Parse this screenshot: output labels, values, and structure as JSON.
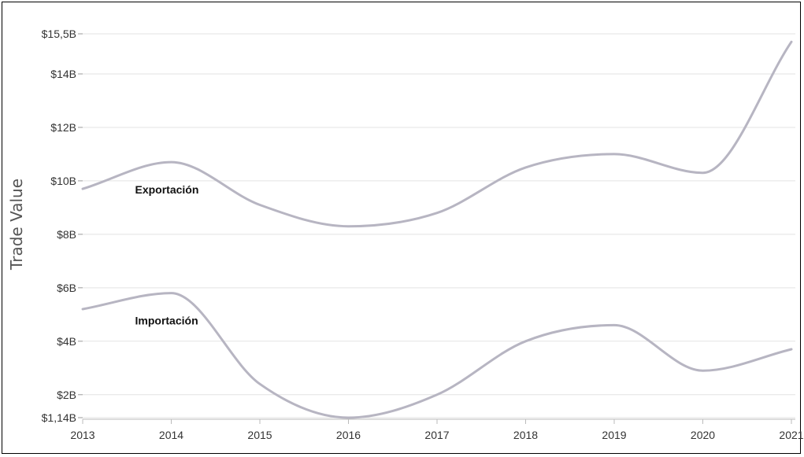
{
  "chart_data": {
    "type": "line",
    "title": "",
    "xlabel": "",
    "ylabel": "Trade Value",
    "x": [
      2013,
      2014,
      2015,
      2016,
      2017,
      2018,
      2019,
      2020,
      2021
    ],
    "x_tick_labels": [
      "2013",
      "2014",
      "2015",
      "2016",
      "2017",
      "2018",
      "2019",
      "2020",
      "2021"
    ],
    "y_ticks": [
      1.14,
      2,
      4,
      6,
      8,
      10,
      12,
      14,
      15.5
    ],
    "y_tick_labels": [
      "$1,14B",
      "$2B",
      "$4B",
      "$6B",
      "$8B",
      "$10B",
      "$12B",
      "$14B",
      "$15,5B"
    ],
    "ylim": [
      1.14,
      15.5
    ],
    "y_unit": "billions USD",
    "grid": true,
    "legend": "none",
    "series": [
      {
        "name": "Exportación",
        "values": [
          9.7,
          10.7,
          9.1,
          8.3,
          8.8,
          10.5,
          11.0,
          10.3,
          15.2
        ],
        "color": "#b7b5c2"
      },
      {
        "name": "Importación",
        "values": [
          5.2,
          5.8,
          2.4,
          1.14,
          2.0,
          4.0,
          4.6,
          2.9,
          3.7
        ],
        "color": "#b7b5c2"
      }
    ]
  }
}
